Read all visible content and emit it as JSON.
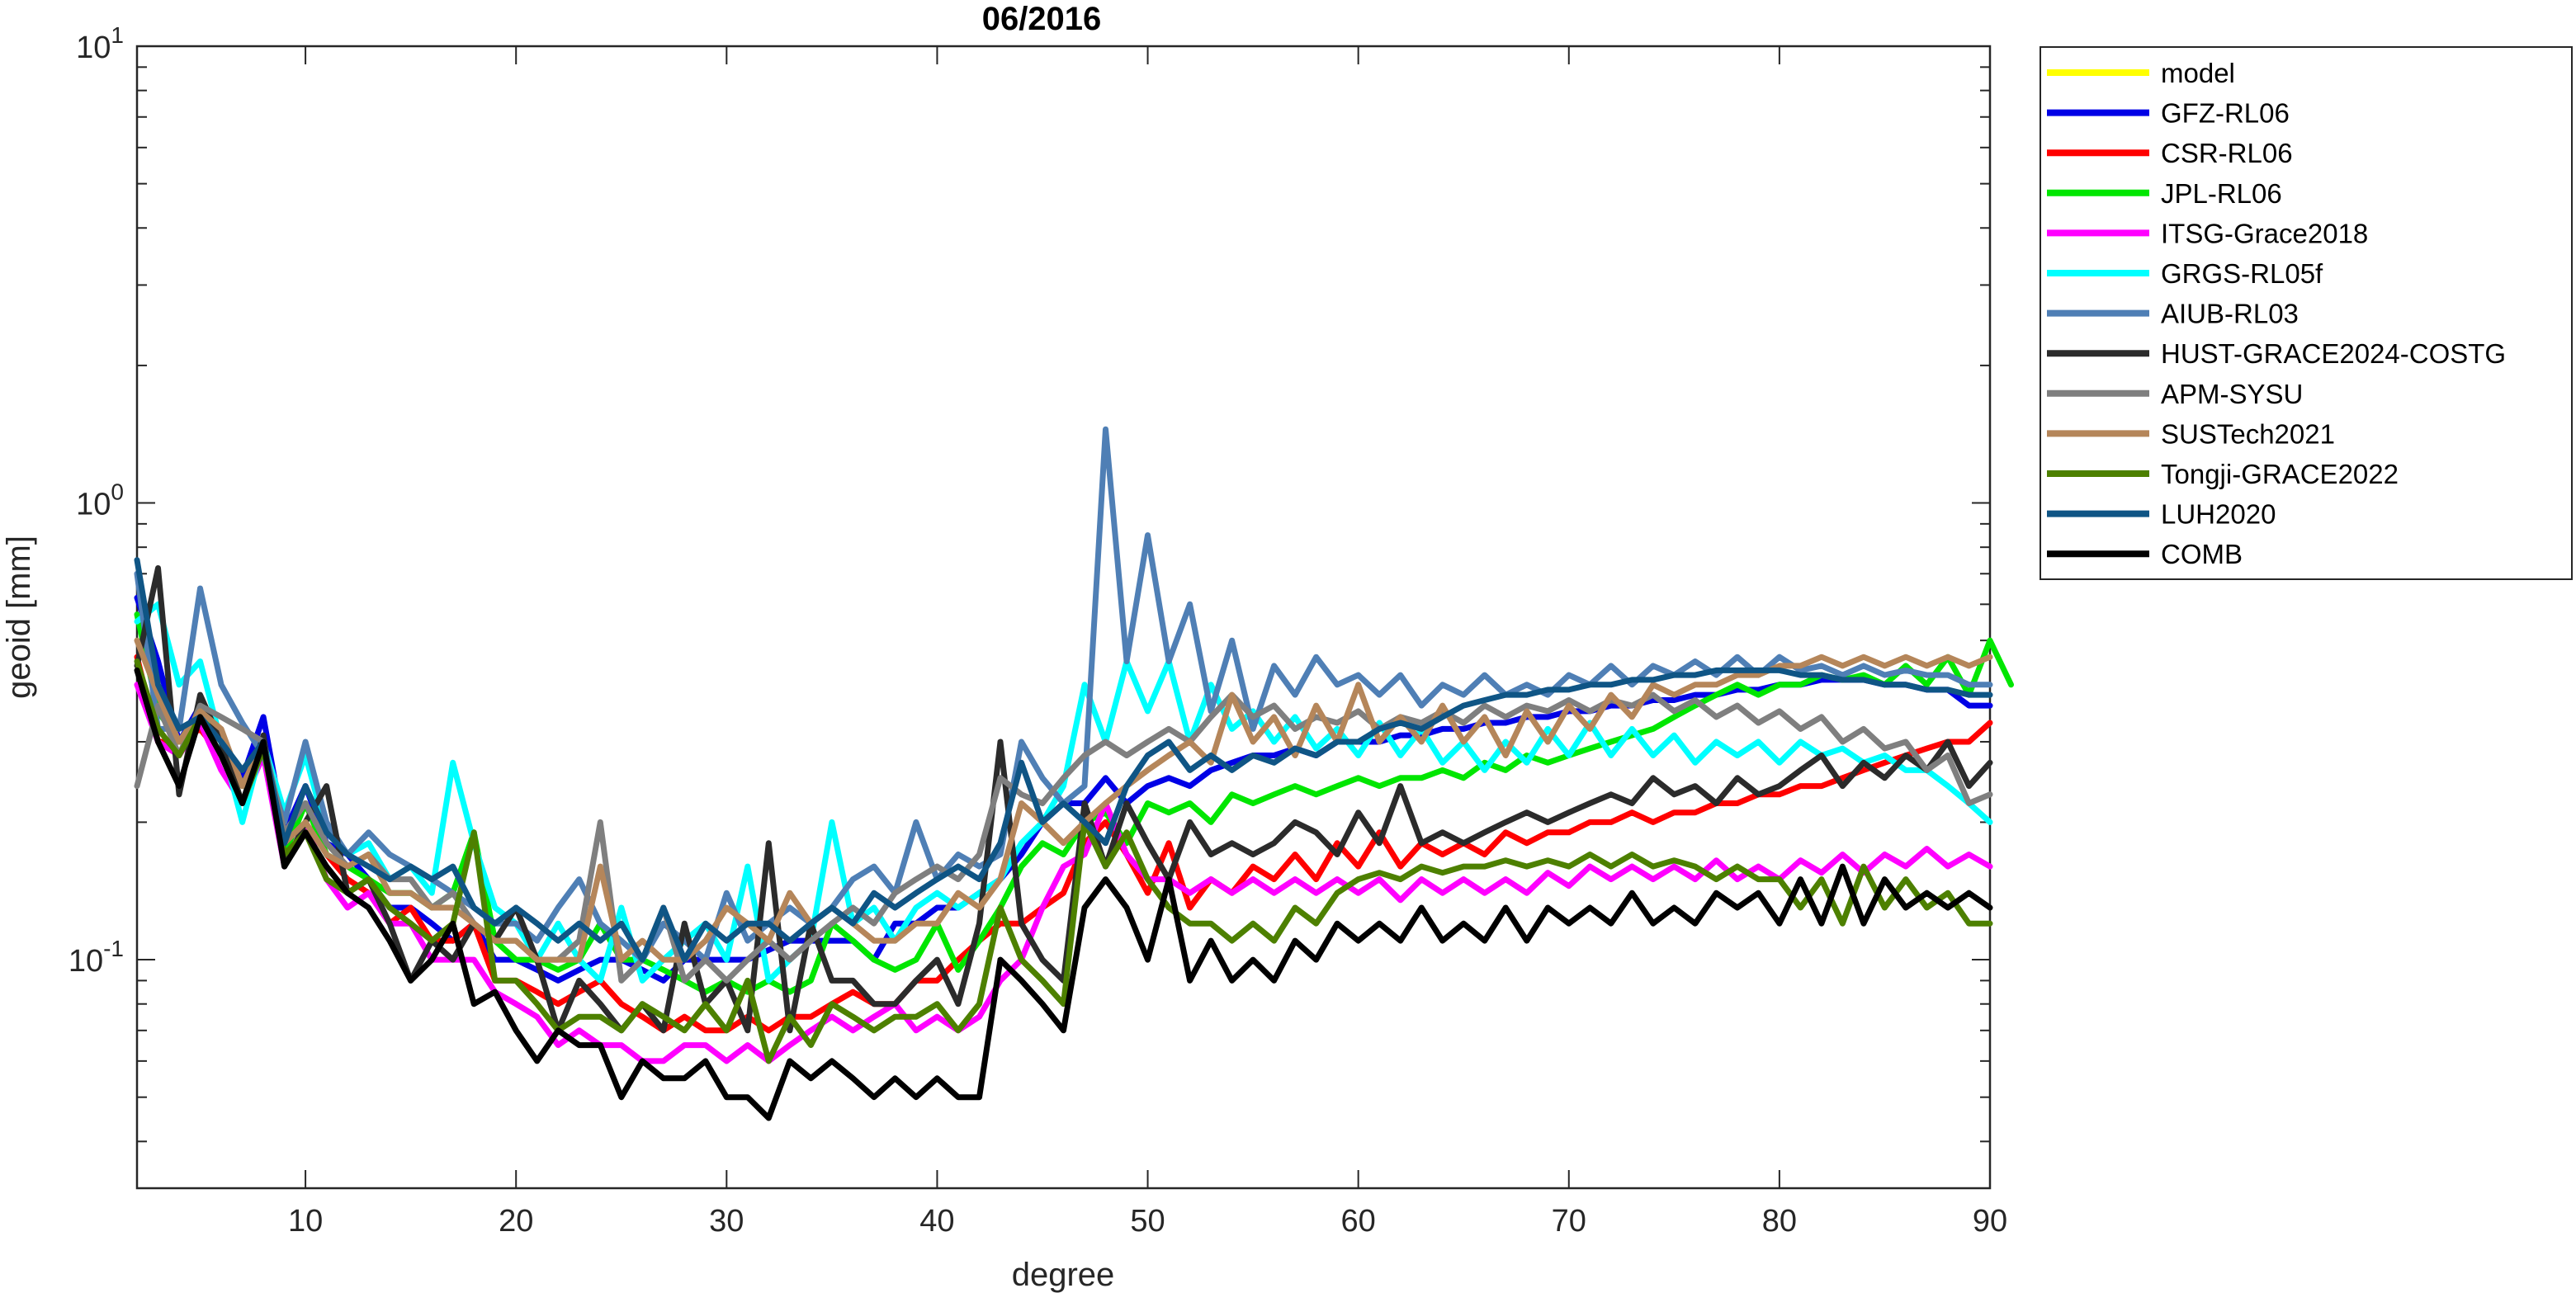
{
  "chart_data": {
    "type": "line",
    "title": "06/2016",
    "xlabel": "degree",
    "ylabel": "geoid [mm]",
    "xlim": [
      2,
      90
    ],
    "ylim": [
      0.0316,
      10
    ],
    "yscale": "log",
    "xticks": [
      10,
      20,
      30,
      40,
      50,
      60,
      70,
      80,
      90
    ],
    "yticks": [
      {
        "value": 0.1,
        "base": "10",
        "exp": "-1"
      },
      {
        "value": 1,
        "base": "10",
        "exp": "0"
      },
      {
        "value": 10,
        "base": "10",
        "exp": "1"
      }
    ],
    "grid": false,
    "legend_position": "outside-top-right",
    "x_start": 2,
    "series": [
      {
        "name": "model",
        "color": "#FFFF00",
        "values": []
      },
      {
        "name": "GFZ-RL06",
        "color": "#0000E6",
        "values": [
          0.62,
          0.45,
          0.3,
          0.36,
          0.3,
          0.25,
          0.34,
          0.19,
          0.24,
          0.18,
          0.17,
          0.15,
          0.13,
          0.13,
          0.12,
          0.11,
          0.12,
          0.1,
          0.1,
          0.095,
          0.09,
          0.095,
          0.1,
          0.1,
          0.095,
          0.09,
          0.1,
          0.1,
          0.1,
          0.1,
          0.105,
          0.11,
          0.11,
          0.11,
          0.11,
          0.1,
          0.12,
          0.12,
          0.13,
          0.13,
          0.14,
          0.15,
          0.17,
          0.2,
          0.22,
          0.22,
          0.25,
          0.22,
          0.24,
          0.25,
          0.24,
          0.26,
          0.27,
          0.28,
          0.28,
          0.29,
          0.28,
          0.3,
          0.3,
          0.3,
          0.31,
          0.31,
          0.32,
          0.32,
          0.33,
          0.33,
          0.34,
          0.34,
          0.35,
          0.35,
          0.36,
          0.36,
          0.37,
          0.37,
          0.38,
          0.38,
          0.39,
          0.39,
          0.4,
          0.4,
          0.41,
          0.41,
          0.41,
          0.4,
          0.4,
          0.39,
          0.39,
          0.36,
          0.36
        ]
      },
      {
        "name": "CSR-RL06",
        "color": "#FF0000",
        "values": [
          0.46,
          0.3,
          0.3,
          0.32,
          0.28,
          0.24,
          0.3,
          0.17,
          0.22,
          0.17,
          0.15,
          0.14,
          0.12,
          0.13,
          0.11,
          0.11,
          0.12,
          0.09,
          0.09,
          0.085,
          0.08,
          0.085,
          0.09,
          0.08,
          0.075,
          0.07,
          0.075,
          0.07,
          0.07,
          0.075,
          0.07,
          0.075,
          0.075,
          0.08,
          0.085,
          0.08,
          0.08,
          0.09,
          0.09,
          0.1,
          0.11,
          0.12,
          0.12,
          0.13,
          0.14,
          0.18,
          0.2,
          0.17,
          0.14,
          0.18,
          0.13,
          0.15,
          0.14,
          0.16,
          0.15,
          0.17,
          0.15,
          0.18,
          0.16,
          0.19,
          0.16,
          0.18,
          0.17,
          0.18,
          0.17,
          0.19,
          0.18,
          0.19,
          0.19,
          0.2,
          0.2,
          0.21,
          0.2,
          0.21,
          0.21,
          0.22,
          0.22,
          0.23,
          0.23,
          0.24,
          0.24,
          0.25,
          0.26,
          0.27,
          0.28,
          0.29,
          0.3,
          0.3,
          0.33
        ]
      },
      {
        "name": "JPL-RL06",
        "color": "#00E600",
        "values": [
          0.57,
          0.35,
          0.3,
          0.35,
          0.3,
          0.24,
          0.3,
          0.17,
          0.22,
          0.17,
          0.16,
          0.15,
          0.14,
          0.14,
          0.13,
          0.14,
          0.19,
          0.11,
          0.1,
          0.1,
          0.095,
          0.1,
          0.12,
          0.1,
          0.1,
          0.095,
          0.09,
          0.085,
          0.09,
          0.085,
          0.09,
          0.085,
          0.09,
          0.12,
          0.11,
          0.1,
          0.095,
          0.1,
          0.12,
          0.095,
          0.11,
          0.13,
          0.16,
          0.18,
          0.17,
          0.2,
          0.21,
          0.18,
          0.22,
          0.21,
          0.22,
          0.2,
          0.23,
          0.22,
          0.23,
          0.24,
          0.23,
          0.24,
          0.25,
          0.24,
          0.25,
          0.25,
          0.26,
          0.25,
          0.27,
          0.26,
          0.28,
          0.27,
          0.28,
          0.29,
          0.3,
          0.31,
          0.32,
          0.34,
          0.36,
          0.38,
          0.4,
          0.38,
          0.4,
          0.4,
          0.42,
          0.41,
          0.42,
          0.4,
          0.44,
          0.4,
          0.46,
          0.38,
          0.5,
          0.4
        ]
      },
      {
        "name": "ITSG-Grace2018",
        "color": "#FF00FF",
        "values": [
          0.4,
          0.3,
          0.28,
          0.33,
          0.26,
          0.22,
          0.28,
          0.16,
          0.2,
          0.15,
          0.13,
          0.14,
          0.12,
          0.12,
          0.1,
          0.1,
          0.1,
          0.085,
          0.08,
          0.075,
          0.065,
          0.07,
          0.065,
          0.065,
          0.06,
          0.06,
          0.065,
          0.065,
          0.06,
          0.065,
          0.06,
          0.065,
          0.07,
          0.075,
          0.07,
          0.075,
          0.08,
          0.07,
          0.075,
          0.07,
          0.075,
          0.09,
          0.1,
          0.13,
          0.16,
          0.17,
          0.22,
          0.17,
          0.15,
          0.15,
          0.14,
          0.15,
          0.14,
          0.15,
          0.14,
          0.15,
          0.14,
          0.15,
          0.14,
          0.15,
          0.135,
          0.15,
          0.14,
          0.15,
          0.14,
          0.15,
          0.14,
          0.155,
          0.145,
          0.16,
          0.15,
          0.16,
          0.15,
          0.16,
          0.15,
          0.165,
          0.15,
          0.16,
          0.15,
          0.165,
          0.155,
          0.17,
          0.155,
          0.17,
          0.16,
          0.175,
          0.16,
          0.17,
          0.16
        ]
      },
      {
        "name": "GRGS-RL05f",
        "color": "#00FFFF",
        "values": [
          0.55,
          0.6,
          0.4,
          0.45,
          0.3,
          0.2,
          0.3,
          0.21,
          0.28,
          0.19,
          0.17,
          0.18,
          0.15,
          0.16,
          0.14,
          0.27,
          0.18,
          0.13,
          0.12,
          0.1,
          0.12,
          0.1,
          0.09,
          0.13,
          0.09,
          0.1,
          0.11,
          0.12,
          0.1,
          0.16,
          0.09,
          0.1,
          0.11,
          0.2,
          0.12,
          0.13,
          0.11,
          0.13,
          0.14,
          0.13,
          0.14,
          0.15,
          0.18,
          0.2,
          0.24,
          0.4,
          0.3,
          0.45,
          0.35,
          0.45,
          0.3,
          0.4,
          0.32,
          0.35,
          0.3,
          0.34,
          0.29,
          0.32,
          0.28,
          0.33,
          0.28,
          0.32,
          0.27,
          0.3,
          0.26,
          0.3,
          0.27,
          0.32,
          0.28,
          0.33,
          0.28,
          0.32,
          0.28,
          0.31,
          0.27,
          0.3,
          0.28,
          0.3,
          0.27,
          0.3,
          0.28,
          0.29,
          0.27,
          0.28,
          0.26,
          0.26,
          0.24,
          0.22,
          0.2
        ]
      },
      {
        "name": "AIUB-RL03",
        "color": "#4F7FB5",
        "values": [
          0.7,
          0.32,
          0.32,
          0.65,
          0.4,
          0.33,
          0.28,
          0.2,
          0.3,
          0.2,
          0.17,
          0.19,
          0.17,
          0.16,
          0.15,
          0.14,
          0.13,
          0.12,
          0.12,
          0.11,
          0.13,
          0.15,
          0.12,
          0.11,
          0.1,
          0.12,
          0.11,
          0.1,
          0.14,
          0.11,
          0.12,
          0.13,
          0.12,
          0.13,
          0.15,
          0.16,
          0.14,
          0.2,
          0.15,
          0.17,
          0.16,
          0.17,
          0.3,
          0.25,
          0.22,
          0.24,
          1.45,
          0.45,
          0.85,
          0.45,
          0.6,
          0.35,
          0.5,
          0.32,
          0.44,
          0.38,
          0.46,
          0.4,
          0.42,
          0.38,
          0.42,
          0.36,
          0.4,
          0.38,
          0.42,
          0.38,
          0.4,
          0.38,
          0.42,
          0.4,
          0.44,
          0.4,
          0.44,
          0.42,
          0.45,
          0.42,
          0.46,
          0.42,
          0.46,
          0.43,
          0.44,
          0.42,
          0.44,
          0.42,
          0.43,
          0.42,
          0.42,
          0.4,
          0.4
        ]
      },
      {
        "name": "HUST-GRACE2024-COSTG",
        "color": "#2B2B2B",
        "values": [
          0.44,
          0.72,
          0.23,
          0.38,
          0.3,
          0.22,
          0.31,
          0.16,
          0.2,
          0.24,
          0.14,
          0.15,
          0.12,
          0.09,
          0.11,
          0.1,
          0.12,
          0.11,
          0.13,
          0.1,
          0.07,
          0.09,
          0.08,
          0.07,
          0.08,
          0.07,
          0.12,
          0.08,
          0.09,
          0.07,
          0.18,
          0.07,
          0.12,
          0.09,
          0.09,
          0.08,
          0.08,
          0.09,
          0.1,
          0.08,
          0.12,
          0.3,
          0.12,
          0.1,
          0.09,
          0.22,
          0.16,
          0.22,
          0.18,
          0.15,
          0.2,
          0.17,
          0.18,
          0.17,
          0.18,
          0.2,
          0.19,
          0.17,
          0.21,
          0.18,
          0.24,
          0.18,
          0.19,
          0.18,
          0.19,
          0.2,
          0.21,
          0.2,
          0.21,
          0.22,
          0.23,
          0.22,
          0.25,
          0.23,
          0.24,
          0.22,
          0.25,
          0.23,
          0.24,
          0.26,
          0.28,
          0.24,
          0.27,
          0.25,
          0.28,
          0.26,
          0.3,
          0.24,
          0.27
        ]
      },
      {
        "name": "APM-SYSU",
        "color": "#7F7F7F",
        "values": [
          0.24,
          0.36,
          0.28,
          0.36,
          0.34,
          0.32,
          0.3,
          0.19,
          0.22,
          0.18,
          0.16,
          0.17,
          0.15,
          0.15,
          0.13,
          0.14,
          0.12,
          0.11,
          0.11,
          0.1,
          0.1,
          0.11,
          0.2,
          0.09,
          0.1,
          0.13,
          0.09,
          0.1,
          0.09,
          0.1,
          0.11,
          0.1,
          0.11,
          0.12,
          0.13,
          0.12,
          0.14,
          0.15,
          0.16,
          0.15,
          0.17,
          0.25,
          0.23,
          0.22,
          0.25,
          0.28,
          0.3,
          0.28,
          0.3,
          0.32,
          0.3,
          0.34,
          0.38,
          0.34,
          0.36,
          0.32,
          0.34,
          0.33,
          0.35,
          0.32,
          0.34,
          0.33,
          0.35,
          0.33,
          0.36,
          0.34,
          0.36,
          0.35,
          0.37,
          0.35,
          0.37,
          0.36,
          0.38,
          0.35,
          0.37,
          0.34,
          0.36,
          0.33,
          0.35,
          0.32,
          0.34,
          0.3,
          0.32,
          0.29,
          0.3,
          0.26,
          0.28,
          0.22,
          0.23
        ]
      },
      {
        "name": "SUSTech2021",
        "color": "#B5865A",
        "values": [
          0.5,
          0.38,
          0.3,
          0.35,
          0.32,
          0.24,
          0.3,
          0.18,
          0.2,
          0.17,
          0.16,
          0.17,
          0.14,
          0.14,
          0.13,
          0.13,
          0.12,
          0.11,
          0.11,
          0.1,
          0.1,
          0.1,
          0.16,
          0.1,
          0.11,
          0.1,
          0.1,
          0.11,
          0.13,
          0.12,
          0.11,
          0.14,
          0.12,
          0.13,
          0.12,
          0.11,
          0.11,
          0.12,
          0.12,
          0.14,
          0.13,
          0.15,
          0.22,
          0.2,
          0.18,
          0.2,
          0.22,
          0.24,
          0.26,
          0.28,
          0.3,
          0.27,
          0.38,
          0.3,
          0.34,
          0.28,
          0.36,
          0.3,
          0.4,
          0.3,
          0.34,
          0.3,
          0.36,
          0.3,
          0.34,
          0.28,
          0.35,
          0.3,
          0.36,
          0.32,
          0.38,
          0.34,
          0.4,
          0.38,
          0.4,
          0.4,
          0.42,
          0.42,
          0.44,
          0.44,
          0.46,
          0.44,
          0.46,
          0.44,
          0.46,
          0.44,
          0.46,
          0.44,
          0.46
        ]
      },
      {
        "name": "Tongji-GRACE2022",
        "color": "#4D8000",
        "values": [
          0.45,
          0.32,
          0.28,
          0.34,
          0.28,
          0.22,
          0.29,
          0.17,
          0.19,
          0.15,
          0.14,
          0.15,
          0.13,
          0.12,
          0.11,
          0.12,
          0.19,
          0.09,
          0.09,
          0.08,
          0.07,
          0.075,
          0.075,
          0.07,
          0.08,
          0.075,
          0.07,
          0.08,
          0.07,
          0.09,
          0.06,
          0.075,
          0.065,
          0.08,
          0.075,
          0.07,
          0.075,
          0.075,
          0.08,
          0.07,
          0.08,
          0.13,
          0.1,
          0.09,
          0.08,
          0.2,
          0.16,
          0.19,
          0.15,
          0.13,
          0.12,
          0.12,
          0.11,
          0.12,
          0.11,
          0.13,
          0.12,
          0.14,
          0.15,
          0.155,
          0.15,
          0.16,
          0.155,
          0.16,
          0.16,
          0.165,
          0.16,
          0.165,
          0.16,
          0.17,
          0.16,
          0.17,
          0.16,
          0.165,
          0.16,
          0.15,
          0.16,
          0.15,
          0.15,
          0.13,
          0.15,
          0.12,
          0.16,
          0.13,
          0.15,
          0.13,
          0.14,
          0.12,
          0.12
        ]
      },
      {
        "name": "LUH2020",
        "color": "#0F5585",
        "values": [
          0.75,
          0.4,
          0.32,
          0.34,
          0.3,
          0.26,
          0.3,
          0.18,
          0.24,
          0.19,
          0.17,
          0.16,
          0.15,
          0.16,
          0.15,
          0.16,
          0.13,
          0.12,
          0.13,
          0.12,
          0.11,
          0.12,
          0.11,
          0.12,
          0.1,
          0.13,
          0.1,
          0.12,
          0.11,
          0.12,
          0.12,
          0.11,
          0.12,
          0.13,
          0.12,
          0.14,
          0.13,
          0.14,
          0.15,
          0.16,
          0.15,
          0.18,
          0.27,
          0.2,
          0.22,
          0.2,
          0.18,
          0.24,
          0.28,
          0.3,
          0.26,
          0.28,
          0.26,
          0.28,
          0.27,
          0.29,
          0.28,
          0.3,
          0.3,
          0.32,
          0.33,
          0.32,
          0.34,
          0.36,
          0.37,
          0.38,
          0.38,
          0.39,
          0.39,
          0.4,
          0.4,
          0.41,
          0.41,
          0.42,
          0.42,
          0.43,
          0.43,
          0.43,
          0.43,
          0.42,
          0.42,
          0.41,
          0.41,
          0.4,
          0.4,
          0.39,
          0.39,
          0.38,
          0.38
        ]
      },
      {
        "name": "COMB",
        "color": "#000000",
        "values": [
          0.43,
          0.3,
          0.24,
          0.34,
          0.28,
          0.22,
          0.3,
          0.16,
          0.19,
          0.16,
          0.14,
          0.13,
          0.11,
          0.09,
          0.1,
          0.12,
          0.08,
          0.085,
          0.07,
          0.06,
          0.07,
          0.065,
          0.065,
          0.05,
          0.06,
          0.055,
          0.055,
          0.06,
          0.05,
          0.05,
          0.045,
          0.06,
          0.055,
          0.06,
          0.055,
          0.05,
          0.055,
          0.05,
          0.055,
          0.05,
          0.05,
          0.1,
          0.09,
          0.08,
          0.07,
          0.13,
          0.15,
          0.13,
          0.1,
          0.15,
          0.09,
          0.11,
          0.09,
          0.1,
          0.09,
          0.11,
          0.1,
          0.12,
          0.11,
          0.12,
          0.11,
          0.13,
          0.11,
          0.12,
          0.11,
          0.13,
          0.11,
          0.13,
          0.12,
          0.13,
          0.12,
          0.14,
          0.12,
          0.13,
          0.12,
          0.14,
          0.13,
          0.14,
          0.12,
          0.15,
          0.12,
          0.16,
          0.12,
          0.15,
          0.13,
          0.14,
          0.13,
          0.14,
          0.13
        ]
      }
    ]
  }
}
